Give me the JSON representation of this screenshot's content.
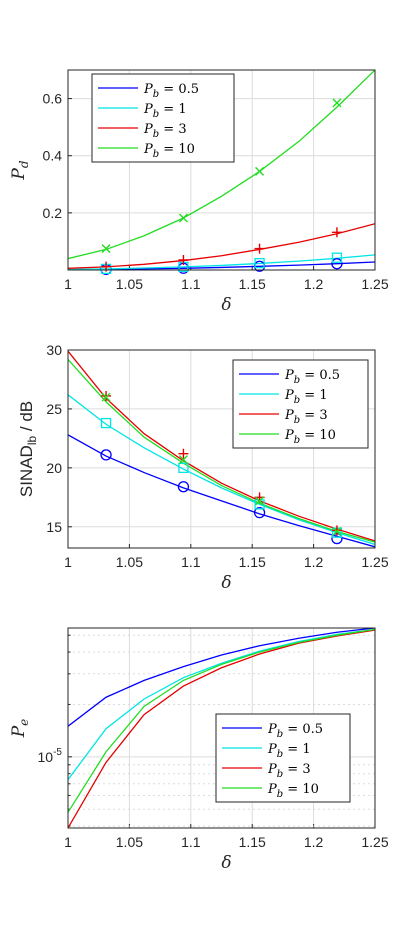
{
  "chart_data": [
    {
      "type": "line",
      "xlabel": "δ",
      "ylabel": "P",
      "ylabel_sub": "d",
      "xlim": [
        1,
        1.25
      ],
      "ylim": [
        0,
        0.7
      ],
      "xticks": [
        "1",
        "1.05",
        "1.1",
        "1.15",
        "1.2",
        "1.25"
      ],
      "yticks": [
        "0.2",
        "0.4",
        "0.6"
      ],
      "yscale": "linear",
      "grid": true,
      "legend": "top-left",
      "series": [
        {
          "name": "Pb = 0.5",
          "legend_base": "P",
          "legend_sub": "b",
          "legend_value": " = 0.5",
          "color": "#0000ff",
          "marker": "circle",
          "x": [
            1,
            1.031,
            1.062,
            1.094,
            1.125,
            1.156,
            1.188,
            1.219,
            1.25
          ],
          "y": [
            0.001,
            0.002,
            0.004,
            0.006,
            0.009,
            0.013,
            0.017,
            0.022,
            0.028
          ],
          "mx": [
            1.031,
            1.094,
            1.156,
            1.219
          ],
          "my": [
            0.002,
            0.006,
            0.013,
            0.022
          ]
        },
        {
          "name": "Pb = 1",
          "legend_base": "P",
          "legend_sub": "b",
          "legend_value": " = 1",
          "color": "#00e5e5",
          "marker": "square",
          "x": [
            1,
            1.031,
            1.062,
            1.094,
            1.125,
            1.156,
            1.188,
            1.219,
            1.25
          ],
          "y": [
            0.002,
            0.004,
            0.007,
            0.011,
            0.016,
            0.023,
            0.031,
            0.041,
            0.053
          ],
          "mx": [
            1.031,
            1.094,
            1.156,
            1.219
          ],
          "my": [
            0.004,
            0.011,
            0.024,
            0.043
          ]
        },
        {
          "name": "Pb = 3",
          "legend_base": "P",
          "legend_sub": "b",
          "legend_value": " = 3",
          "color": "#e60000",
          "marker": "plus",
          "x": [
            1,
            1.031,
            1.062,
            1.094,
            1.125,
            1.156,
            1.188,
            1.219,
            1.25
          ],
          "y": [
            0.006,
            0.011,
            0.02,
            0.033,
            0.05,
            0.072,
            0.097,
            0.127,
            0.162
          ],
          "mx": [
            1.031,
            1.094,
            1.156,
            1.219
          ],
          "my": [
            0.012,
            0.035,
            0.075,
            0.132
          ]
        },
        {
          "name": "Pb = 10",
          "legend_base": "P",
          "legend_sub": "b",
          "legend_value": " = 10",
          "color": "#22dd22",
          "marker": "cross",
          "x": [
            1,
            1.031,
            1.062,
            1.094,
            1.125,
            1.156,
            1.188,
            1.219,
            1.25
          ],
          "y": [
            0.04,
            0.072,
            0.12,
            0.182,
            0.258,
            0.345,
            0.45,
            0.57,
            0.7
          ],
          "mx": [
            1.031,
            1.094,
            1.156,
            1.219
          ],
          "my": [
            0.075,
            0.182,
            0.345,
            0.585
          ]
        }
      ]
    },
    {
      "type": "line",
      "xlabel": "δ",
      "ylabel": "SINAD",
      "ylabel_sub": "lb",
      "ylabel_suffix": " / dB",
      "xlim": [
        1,
        1.25
      ],
      "ylim": [
        13.2,
        30
      ],
      "xticks": [
        "1",
        "1.05",
        "1.1",
        "1.15",
        "1.2",
        "1.25"
      ],
      "yticks": [
        "15",
        "20",
        "25",
        "30"
      ],
      "yscale": "linear",
      "grid": true,
      "legend": "top-right",
      "series": [
        {
          "name": "Pb = 0.5",
          "legend_base": "P",
          "legend_sub": "b",
          "legend_value": " = 0.5",
          "color": "#0000ff",
          "marker": "circle",
          "x": [
            1,
            1.031,
            1.062,
            1.094,
            1.125,
            1.156,
            1.188,
            1.219,
            1.25
          ],
          "y": [
            22.8,
            21,
            19.6,
            18.3,
            17.2,
            16.1,
            15.1,
            14.2,
            13.3
          ],
          "mx": [
            1.031,
            1.094,
            1.156,
            1.219
          ],
          "my": [
            21.1,
            18.4,
            16.2,
            14.0
          ]
        },
        {
          "name": "Pb = 1",
          "legend_base": "P",
          "legend_sub": "b",
          "legend_value": " = 1",
          "color": "#00e5e5",
          "marker": "square",
          "x": [
            1,
            1.031,
            1.062,
            1.094,
            1.125,
            1.156,
            1.188,
            1.219,
            1.25
          ],
          "y": [
            26.2,
            23.7,
            21.7,
            19.9,
            18.3,
            16.9,
            15.6,
            14.5,
            13.5
          ],
          "mx": [
            1.031,
            1.094,
            1.156,
            1.219
          ],
          "my": [
            23.8,
            20.0,
            16.9,
            14.5
          ]
        },
        {
          "name": "Pb = 3",
          "legend_base": "P",
          "legend_sub": "b",
          "legend_value": " = 3",
          "color": "#e60000",
          "marker": "plus",
          "x": [
            1,
            1.031,
            1.062,
            1.094,
            1.125,
            1.156,
            1.188,
            1.219,
            1.25
          ],
          "y": [
            29.9,
            25.9,
            22.9,
            20.6,
            18.7,
            17.2,
            15.9,
            14.8,
            13.8
          ],
          "mx": [
            1.031,
            1.094,
            1.156,
            1.219
          ],
          "my": [
            26.1,
            21.2,
            17.5,
            14.7
          ]
        },
        {
          "name": "Pb = 10",
          "legend_base": "P",
          "legend_sub": "b",
          "legend_value": " = 10",
          "color": "#22dd22",
          "marker": "cross",
          "x": [
            1,
            1.031,
            1.062,
            1.094,
            1.125,
            1.156,
            1.188,
            1.219,
            1.25
          ],
          "y": [
            29.2,
            25.6,
            22.6,
            20.4,
            18.5,
            17.0,
            15.7,
            14.6,
            13.7
          ],
          "mx": [
            1.031,
            1.094,
            1.156,
            1.219
          ],
          "my": [
            26.0,
            20.7,
            17.2,
            14.6
          ]
        }
      ]
    },
    {
      "type": "line",
      "xlabel": "δ",
      "ylabel": "P",
      "ylabel_sub": "e",
      "xlim": [
        1,
        1.25
      ],
      "ylim": [
        3.9e-06,
        5.5e-05
      ],
      "xticks": [
        "1",
        "1.05",
        "1.1",
        "1.15",
        "1.2",
        "1.25"
      ],
      "yticks": [
        "10-5"
      ],
      "ytick_base": "10",
      "ytick_exp": "-5",
      "ytick_value": 1e-05,
      "yscale": "log",
      "grid": true,
      "legend": "bottom-right",
      "series": [
        {
          "name": "Pb = 0.5",
          "legend_base": "P",
          "legend_sub": "b",
          "legend_value": " = 0.5",
          "color": "#0000ff",
          "x": [
            1,
            1.031,
            1.062,
            1.094,
            1.125,
            1.156,
            1.188,
            1.219,
            1.25
          ],
          "y": [
            1.5e-05,
            2.2e-05,
            2.75e-05,
            3.3e-05,
            3.85e-05,
            4.35e-05,
            4.8e-05,
            5.2e-05,
            5.5e-05
          ]
        },
        {
          "name": "Pb = 1",
          "legend_base": "P",
          "legend_sub": "b",
          "legend_value": " = 1",
          "color": "#00e5e5",
          "x": [
            1,
            1.031,
            1.062,
            1.094,
            1.125,
            1.156,
            1.188,
            1.219,
            1.25
          ],
          "y": [
            7.4e-06,
            1.45e-05,
            2.15e-05,
            2.85e-05,
            3.45e-05,
            4.05e-05,
            4.6e-05,
            5.05e-05,
            5.4e-05
          ]
        },
        {
          "name": "Pb = 3",
          "legend_base": "P",
          "legend_sub": "b",
          "legend_value": " = 3",
          "color": "#e60000",
          "x": [
            1,
            1.031,
            1.062,
            1.094,
            1.125,
            1.156,
            1.188,
            1.219,
            1.25
          ],
          "y": [
            3.9e-06,
            9.3e-06,
            1.75e-05,
            2.55e-05,
            3.25e-05,
            3.9e-05,
            4.5e-05,
            4.95e-05,
            5.35e-05
          ]
        },
        {
          "name": "Pb = 10",
          "legend_base": "P",
          "legend_sub": "b",
          "legend_value": " = 10",
          "color": "#22dd22",
          "x": [
            1,
            1.031,
            1.062,
            1.094,
            1.125,
            1.156,
            1.188,
            1.219,
            1.25
          ],
          "y": [
            4.8e-06,
            1.07e-05,
            1.95e-05,
            2.75e-05,
            3.4e-05,
            4e-05,
            4.55e-05,
            5e-05,
            5.4e-05
          ]
        }
      ]
    }
  ]
}
